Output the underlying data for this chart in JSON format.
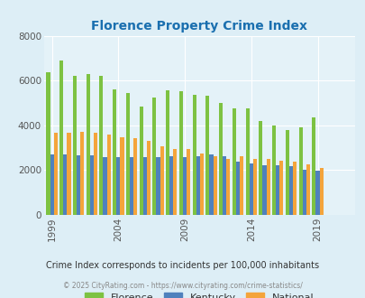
{
  "title": "Florence Property Crime Index",
  "years": [
    1999,
    2000,
    2001,
    2002,
    2003,
    2004,
    2005,
    2006,
    2007,
    2008,
    2009,
    2010,
    2011,
    2012,
    2013,
    2014,
    2015,
    2016,
    2017,
    2018,
    2019,
    2020,
    2021
  ],
  "florence": [
    6350,
    6900,
    6200,
    6300,
    6200,
    5600,
    5450,
    4850,
    5250,
    5550,
    5500,
    5350,
    5300,
    5000,
    4750,
    4750,
    4200,
    4000,
    3800,
    3900,
    4350,
    null,
    null
  ],
  "kentucky": [
    2700,
    2700,
    2650,
    2650,
    2550,
    2550,
    2550,
    2550,
    2550,
    2600,
    2550,
    2600,
    2700,
    2600,
    2350,
    2300,
    2200,
    2200,
    2150,
    2000,
    1950,
    null,
    null
  ],
  "national": [
    3650,
    3650,
    3700,
    3650,
    3600,
    3450,
    3400,
    3300,
    3050,
    2950,
    2950,
    2750,
    2600,
    2500,
    2600,
    2500,
    2500,
    2400,
    2350,
    2250,
    2100,
    null,
    null
  ],
  "florence_color": "#7dc242",
  "kentucky_color": "#4f81bd",
  "national_color": "#f4a43b",
  "bg_color": "#ddeef6",
  "plot_bg": "#ddeef6",
  "chart_bg": "#e4f2f8",
  "ylabel_max": 8000,
  "yticks": [
    0,
    2000,
    4000,
    6000,
    8000
  ],
  "xticks": [
    1999,
    2004,
    2009,
    2014,
    2019
  ],
  "subtitle": "Crime Index corresponds to incidents per 100,000 inhabitants",
  "footer": "© 2025 CityRating.com - https://www.cityrating.com/crime-statistics/",
  "bar_width": 0.28,
  "legend_labels": [
    "Florence",
    "Kentucky",
    "National"
  ]
}
